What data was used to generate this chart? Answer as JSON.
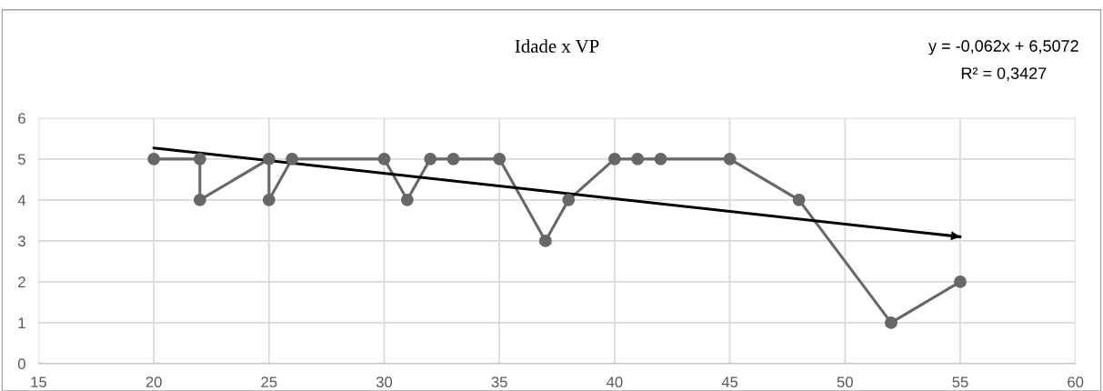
{
  "chart_data": {
    "type": "line",
    "title": "Idade x VP",
    "annotations": [
      "y = -0,062x + 6,5072",
      "R² = 0,3427"
    ],
    "series": [
      {
        "color": "#666866",
        "marker": "circle",
        "x": [
          20,
          22,
          22,
          25,
          25,
          26,
          30,
          31,
          32,
          33,
          35,
          37,
          38,
          40,
          41,
          42,
          45,
          48,
          52,
          55
        ],
        "values": [
          5,
          5,
          4,
          5,
          4,
          5,
          5,
          4,
          5,
          5,
          5,
          3,
          4,
          5,
          5,
          5,
          5,
          4,
          1,
          2
        ]
      },
      {
        "color": "#000000",
        "marker": "none",
        "x": [
          20,
          55
        ],
        "values": [
          5.27,
          3.1
        ]
      }
    ],
    "xlim": [
      15,
      60
    ],
    "xticks": [
      15,
      20,
      25,
      30,
      35,
      40,
      45,
      50,
      55,
      60
    ],
    "ylim": [
      0,
      6
    ],
    "yticks": [
      0,
      1,
      2,
      3,
      4,
      5,
      6
    ],
    "grid": true
  }
}
